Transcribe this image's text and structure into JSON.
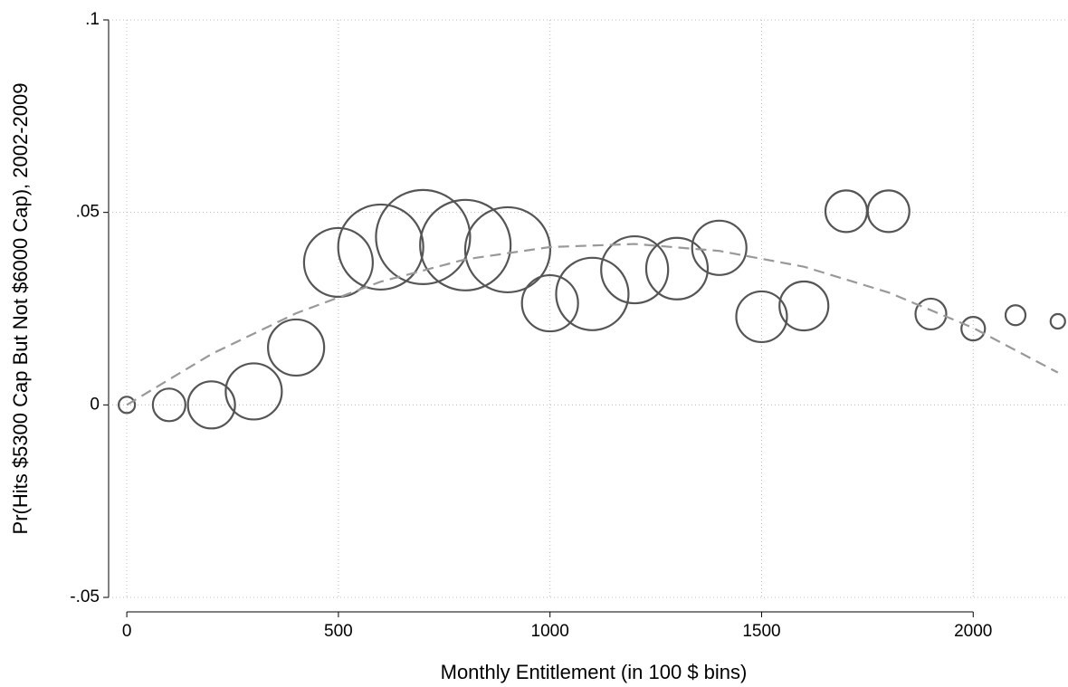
{
  "chart_data": {
    "type": "scatter",
    "x_label": "Monthly Entitlement (in 100 $ bins)",
    "y_label": "Pr(Hits $5300 Cap But Not $6000 Cap), 2002-2009",
    "xlim": [
      -43,
      2224
    ],
    "ylim": [
      -0.05,
      0.1
    ],
    "xticks": [
      0,
      500,
      1000,
      1500,
      2000
    ],
    "yticks": [
      {
        "value": -0.05,
        "label": "-.05"
      },
      0,
      {
        "value": 0.05,
        "label": ".05"
      },
      {
        "value": 0.1,
        "label": ".1"
      }
    ],
    "grid": true,
    "x": [
      0,
      100,
      200,
      300,
      400,
      500,
      600,
      700,
      800,
      900,
      1000,
      1100,
      1200,
      1300,
      1400,
      1500,
      1600,
      1700,
      1800,
      1900,
      2000,
      2100,
      2200
    ],
    "series": [
      {
        "color": "#555555",
        "values": [
          0,
          0,
          0,
          0.0035,
          0.0149,
          0.037,
          0.041,
          0.0436,
          0.0415,
          0.0403,
          0.0264,
          0.0288,
          0.0351,
          0.0354,
          0.0408,
          0.0229,
          0.0257,
          0.0503,
          0.0503,
          0.0236,
          0.0198,
          0.0233,
          0.0217
        ],
        "sizes": [
          9,
          18,
          26,
          31,
          31,
          38,
          47,
          52,
          50,
          47,
          31,
          40,
          37,
          34,
          30,
          28,
          27,
          23,
          23,
          17,
          13,
          11,
          8
        ]
      }
    ],
    "fit": {
      "color": "#999999",
      "x": [
        0,
        200,
        400,
        600,
        800,
        1000,
        1200,
        1400,
        1600,
        1800,
        2000,
        2200
      ],
      "values": [
        0,
        0.0132,
        0.0238,
        0.032,
        0.0378,
        0.041,
        0.0418,
        0.04,
        0.0359,
        0.0292,
        0.02,
        0.0084
      ]
    }
  }
}
